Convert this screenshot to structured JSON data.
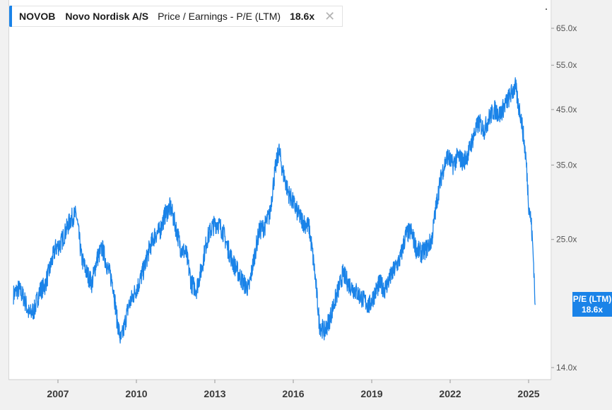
{
  "legend": {
    "ticker": "NOVOB",
    "company": "Novo Nordisk A/S",
    "metric": "Price / Earnings - P/E (LTM)",
    "value": "18.6x",
    "close_icon": "close-icon"
  },
  "callout": {
    "label": "P/E (LTM)",
    "value": "18.6x"
  },
  "colors": {
    "line": "#1a83e8",
    "axis_text": "#555555",
    "x_text": "#3a3a3a"
  },
  "chart_data": {
    "type": "line",
    "y_scale": "log",
    "ylim": [
      14.0,
      72.0
    ],
    "xlim": [
      2005.3,
      2025.5
    ],
    "y_ticks": [
      {
        "value": 65,
        "label": "65.0x"
      },
      {
        "value": 55,
        "label": "55.0x"
      },
      {
        "value": 45,
        "label": "45.0x"
      },
      {
        "value": 35,
        "label": "35.0x"
      },
      {
        "value": 25,
        "label": "25.0x"
      },
      {
        "value": 14,
        "label": "14.0x"
      }
    ],
    "x_ticks": [
      {
        "value": 2007,
        "label": "2007"
      },
      {
        "value": 2010,
        "label": "2010"
      },
      {
        "value": 2013,
        "label": "2013"
      },
      {
        "value": 2016,
        "label": "2016"
      },
      {
        "value": 2019,
        "label": "2019"
      },
      {
        "value": 2022,
        "label": "2022"
      },
      {
        "value": 2025,
        "label": "2025"
      }
    ],
    "series": [
      {
        "values": [
          [
            2005.3,
            19.5
          ],
          [
            2005.5,
            20.0
          ],
          [
            2005.7,
            19.2
          ],
          [
            2005.9,
            17.8
          ],
          [
            2006.1,
            18.2
          ],
          [
            2006.3,
            19.8
          ],
          [
            2006.5,
            20.3
          ],
          [
            2006.7,
            22.0
          ],
          [
            2006.9,
            24.0
          ],
          [
            2007.1,
            24.5
          ],
          [
            2007.3,
            26.0
          ],
          [
            2007.5,
            27.5
          ],
          [
            2007.7,
            28.0
          ],
          [
            2007.9,
            23.0
          ],
          [
            2008.1,
            21.5
          ],
          [
            2008.3,
            20.5
          ],
          [
            2008.5,
            23.0
          ],
          [
            2008.7,
            24.0
          ],
          [
            2008.9,
            22.0
          ],
          [
            2009.1,
            20.5
          ],
          [
            2009.25,
            17.5
          ],
          [
            2009.4,
            15.8
          ],
          [
            2009.5,
            16.5
          ],
          [
            2009.7,
            18.5
          ],
          [
            2009.9,
            19.5
          ],
          [
            2010.1,
            20.5
          ],
          [
            2010.3,
            22.0
          ],
          [
            2010.5,
            24.0
          ],
          [
            2010.7,
            25.5
          ],
          [
            2010.9,
            26.0
          ],
          [
            2011.1,
            28.0
          ],
          [
            2011.3,
            29.0
          ],
          [
            2011.5,
            26.5
          ],
          [
            2011.7,
            24.0
          ],
          [
            2011.9,
            23.5
          ],
          [
            2012.1,
            20.5
          ],
          [
            2012.3,
            20.0
          ],
          [
            2012.5,
            22.0
          ],
          [
            2012.7,
            25.0
          ],
          [
            2012.9,
            26.5
          ],
          [
            2013.1,
            27.0
          ],
          [
            2013.3,
            26.0
          ],
          [
            2013.5,
            24.0
          ],
          [
            2013.7,
            22.5
          ],
          [
            2013.9,
            21.5
          ],
          [
            2014.1,
            20.5
          ],
          [
            2014.3,
            20.0
          ],
          [
            2014.5,
            23.0
          ],
          [
            2014.7,
            26.0
          ],
          [
            2014.9,
            26.5
          ],
          [
            2015.1,
            28.0
          ],
          [
            2015.3,
            34.0
          ],
          [
            2015.45,
            37.5
          ],
          [
            2015.6,
            34.0
          ],
          [
            2015.8,
            31.0
          ],
          [
            2016.0,
            29.5
          ],
          [
            2016.2,
            28.0
          ],
          [
            2016.4,
            27.0
          ],
          [
            2016.6,
            26.5
          ],
          [
            2016.8,
            22.0
          ],
          [
            2017.0,
            17.0
          ],
          [
            2017.2,
            16.5
          ],
          [
            2017.4,
            17.5
          ],
          [
            2017.6,
            19.0
          ],
          [
            2017.8,
            20.5
          ],
          [
            2017.9,
            21.5
          ],
          [
            2018.1,
            20.5
          ],
          [
            2018.3,
            20.0
          ],
          [
            2018.5,
            19.5
          ],
          [
            2018.7,
            19.0
          ],
          [
            2018.9,
            18.5
          ],
          [
            2019.1,
            19.5
          ],
          [
            2019.3,
            20.5
          ],
          [
            2019.5,
            20.0
          ],
          [
            2019.7,
            21.0
          ],
          [
            2019.9,
            22.0
          ],
          [
            2020.1,
            23.0
          ],
          [
            2020.3,
            25.5
          ],
          [
            2020.5,
            26.0
          ],
          [
            2020.7,
            24.0
          ],
          [
            2020.9,
            23.5
          ],
          [
            2021.1,
            24.0
          ],
          [
            2021.3,
            25.0
          ],
          [
            2021.5,
            30.0
          ],
          [
            2021.7,
            34.0
          ],
          [
            2021.9,
            36.5
          ],
          [
            2022.1,
            35.0
          ],
          [
            2022.3,
            36.5
          ],
          [
            2022.5,
            35.5
          ],
          [
            2022.7,
            37.0
          ],
          [
            2022.9,
            40.0
          ],
          [
            2023.1,
            42.5
          ],
          [
            2023.3,
            41.0
          ],
          [
            2023.5,
            43.5
          ],
          [
            2023.7,
            45.0
          ],
          [
            2023.9,
            44.0
          ],
          [
            2024.1,
            46.0
          ],
          [
            2024.3,
            48.0
          ],
          [
            2024.5,
            50.0
          ],
          [
            2024.6,
            46.0
          ],
          [
            2024.7,
            44.0
          ],
          [
            2024.8,
            40.0
          ],
          [
            2024.9,
            36.0
          ],
          [
            2025.0,
            29.5
          ],
          [
            2025.1,
            27.0
          ],
          [
            2025.2,
            22.0
          ],
          [
            2025.25,
            18.6
          ]
        ]
      }
    ]
  }
}
